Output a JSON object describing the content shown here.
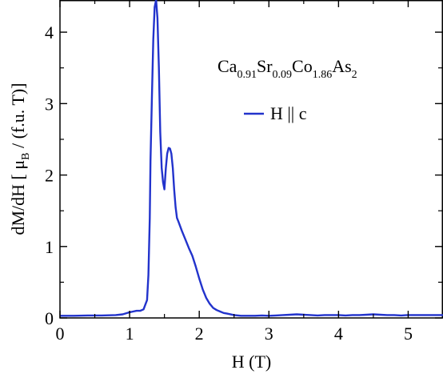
{
  "chart_data": {
    "type": "line",
    "xlabel": "H (T)",
    "ylabel_parts": {
      "main": "dM/dH [ μ",
      "sub": "B",
      "tail": " / (f.u. T)]"
    },
    "xlim": [
      0,
      5.5
    ],
    "ylim": [
      0,
      4.45
    ],
    "xticks": [
      0,
      1,
      2,
      3,
      4,
      5
    ],
    "yticks": [
      0,
      1,
      2,
      3,
      4
    ],
    "xtick_labels": [
      "0",
      "1",
      "2",
      "3",
      "4",
      "5"
    ],
    "ytick_labels": [
      "0",
      "1",
      "2",
      "3",
      "4"
    ],
    "grid": false,
    "legend_position": "upper-right",
    "annotation": {
      "parts": [
        {
          "t": "Ca",
          "sub": false
        },
        {
          "t": "0.91",
          "sub": true
        },
        {
          "t": "Sr",
          "sub": false
        },
        {
          "t": "0.09",
          "sub": true
        },
        {
          "t": "Co",
          "sub": false
        },
        {
          "t": "1.86",
          "sub": true
        },
        {
          "t": "As",
          "sub": false
        },
        {
          "t": "2",
          "sub": true
        }
      ]
    },
    "series": [
      {
        "name": "H || c",
        "color": "#2233cc",
        "x": [
          0.0,
          0.2,
          0.4,
          0.6,
          0.8,
          0.9,
          1.0,
          1.05,
          1.1,
          1.15,
          1.2,
          1.25,
          1.27,
          1.29,
          1.3,
          1.32,
          1.34,
          1.36,
          1.38,
          1.4,
          1.42,
          1.44,
          1.46,
          1.48,
          1.5,
          1.52,
          1.54,
          1.56,
          1.58,
          1.6,
          1.62,
          1.64,
          1.66,
          1.68,
          1.7,
          1.75,
          1.8,
          1.85,
          1.9,
          1.95,
          2.0,
          2.05,
          2.1,
          2.15,
          2.2,
          2.25,
          2.3,
          2.35,
          2.4,
          2.5,
          2.6,
          2.7,
          2.8,
          2.9,
          3.0,
          3.1,
          3.2,
          3.3,
          3.4,
          3.5,
          3.6,
          3.7,
          3.8,
          3.9,
          4.0,
          4.1,
          4.2,
          4.3,
          4.4,
          4.5,
          4.6,
          4.7,
          4.8,
          4.9,
          5.0,
          5.2,
          5.5
        ],
        "y": [
          0.03,
          0.03,
          0.035,
          0.035,
          0.04,
          0.05,
          0.08,
          0.09,
          0.1,
          0.1,
          0.12,
          0.25,
          0.6,
          1.4,
          2.2,
          3.1,
          3.9,
          4.35,
          4.45,
          4.2,
          3.5,
          2.6,
          2.1,
          1.9,
          1.8,
          2.1,
          2.3,
          2.38,
          2.37,
          2.3,
          2.1,
          1.8,
          1.55,
          1.4,
          1.35,
          1.22,
          1.1,
          0.98,
          0.87,
          0.72,
          0.55,
          0.4,
          0.28,
          0.2,
          0.14,
          0.11,
          0.09,
          0.07,
          0.06,
          0.04,
          0.03,
          0.03,
          0.03,
          0.035,
          0.03,
          0.035,
          0.04,
          0.045,
          0.05,
          0.045,
          0.04,
          0.035,
          0.04,
          0.04,
          0.04,
          0.035,
          0.04,
          0.04,
          0.045,
          0.05,
          0.045,
          0.04,
          0.04,
          0.035,
          0.04,
          0.04,
          0.04
        ]
      }
    ]
  }
}
